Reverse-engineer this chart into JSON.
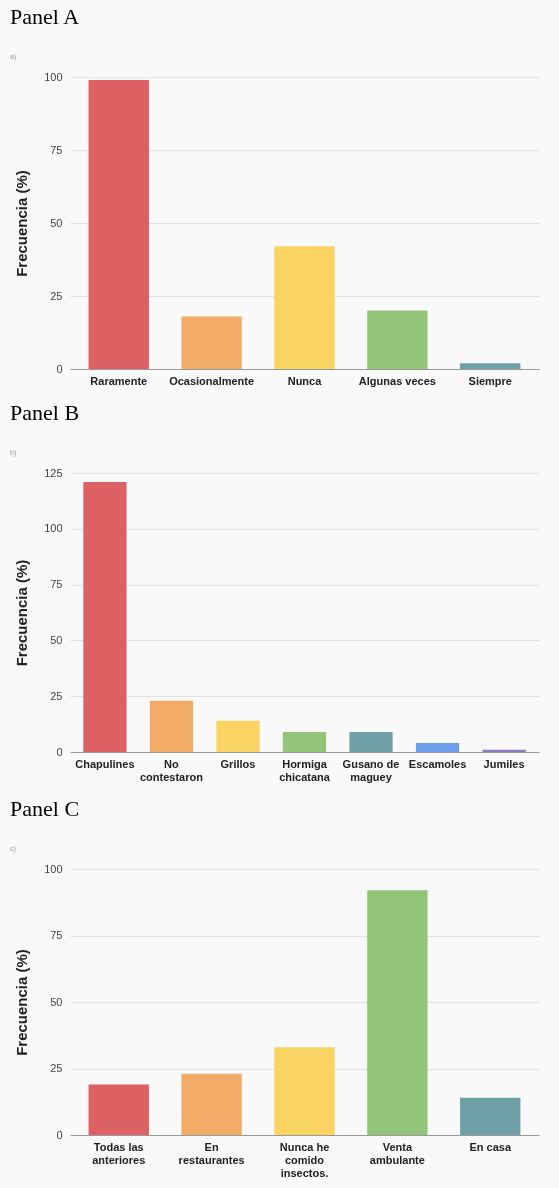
{
  "chart_data": [
    {
      "type": "bar",
      "title": "Panel A",
      "subtitle": "a)",
      "ylabel": "Frecuencia (%)",
      "categories": [
        "Raramente",
        "Ocasionalmente",
        "Nunca",
        "Algunas veces",
        "Siempre"
      ],
      "values": [
        99,
        18,
        42,
        20,
        2
      ],
      "colors": [
        "#dd6162",
        "#f3ac67",
        "#f9d463",
        "#92c47a",
        "#6fa0a8"
      ],
      "ylim": [
        0,
        100
      ],
      "yticks": [
        0,
        25,
        50,
        75,
        100
      ],
      "grid": "y"
    },
    {
      "type": "bar",
      "title": "Panel B",
      "subtitle": "b)",
      "ylabel": "Frecuencia (%)",
      "categories": [
        "Chapulines",
        "No contestaron",
        "Grillos",
        "Hormiga chicatana",
        "Gusano de maguey",
        "Escamoles",
        "Jumiles"
      ],
      "values": [
        121,
        23,
        14,
        9,
        9,
        4,
        1
      ],
      "colors": [
        "#dd6162",
        "#f3ac67",
        "#f9d463",
        "#92c47a",
        "#6fa0a8",
        "#6d9eeb",
        "#8e7cc3"
      ],
      "ylim": [
        0,
        125
      ],
      "yticks": [
        0,
        25,
        50,
        75,
        100,
        125
      ],
      "grid": "y"
    },
    {
      "type": "bar",
      "title": "Panel C",
      "subtitle": "c)",
      "ylabel": "Frecuencia (%)",
      "categories": [
        "Todas las anteriores",
        "En restaurantes",
        "Nunca he comido insectos.",
        "Venta ambulante",
        "En casa"
      ],
      "values": [
        19,
        23,
        33,
        92,
        14
      ],
      "colors": [
        "#dd6162",
        "#f3ac67",
        "#f9d463",
        "#92c47a",
        "#6fa0a8"
      ],
      "ylim": [
        0,
        100
      ],
      "yticks": [
        0,
        25,
        50,
        75,
        100
      ],
      "grid": "y"
    }
  ]
}
